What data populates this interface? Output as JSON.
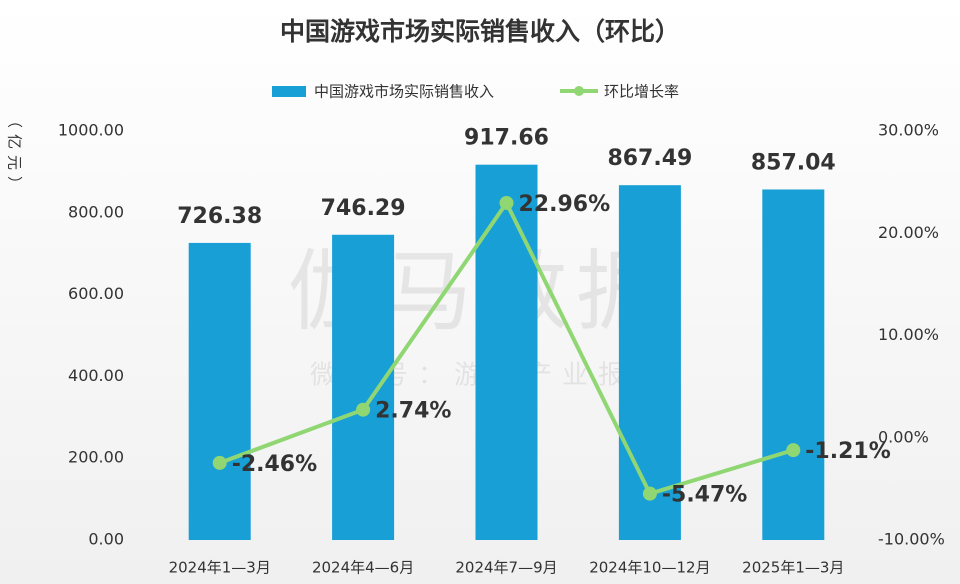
{
  "chart_data": {
    "type": "bar",
    "title": "中国游戏市场实际销售收入（环比）",
    "y_label": "（亿元）",
    "watermark": "伽马数据",
    "watermark_sub": "微信号：游戏产业报告",
    "categories": [
      "2024年1—3月",
      "2024年4—6月",
      "2024年7—9月",
      "2024年10—12月",
      "2025年1—3月"
    ],
    "series": [
      {
        "name": "中国游戏市场实际销售收入",
        "type": "bar",
        "color": "#179fd6",
        "values": [
          726.38,
          746.29,
          917.66,
          867.49,
          857.04
        ]
      },
      {
        "name": "环比增长率",
        "type": "line",
        "axis": "y2",
        "color": "#90d774",
        "values": [
          -2.46,
          2.74,
          22.96,
          -5.47,
          -1.21
        ],
        "value_labels": [
          "-2.46%",
          "2.74%",
          "22.96%",
          "-5.47%",
          "-1.21%"
        ]
      }
    ],
    "ylim": [
      0,
      1000
    ],
    "yticks": [
      {
        "value": 0,
        "label": "0.00"
      },
      {
        "value": 200,
        "label": "200.00"
      },
      {
        "value": 400,
        "label": "400.00"
      },
      {
        "value": 600,
        "label": "600.00"
      },
      {
        "value": 800,
        "label": "800.00"
      },
      {
        "value": 1000,
        "label": "1000.00"
      }
    ],
    "y2lim": [
      -10,
      30
    ],
    "y2ticks": [
      {
        "value": -10,
        "label": "-10.00%"
      },
      {
        "value": 0,
        "label": "0.00%"
      },
      {
        "value": 10,
        "label": "10.00%"
      },
      {
        "value": 20,
        "label": "20.00%"
      },
      {
        "value": 30,
        "label": "30.00%"
      }
    ],
    "grid": false,
    "legend": "top"
  }
}
